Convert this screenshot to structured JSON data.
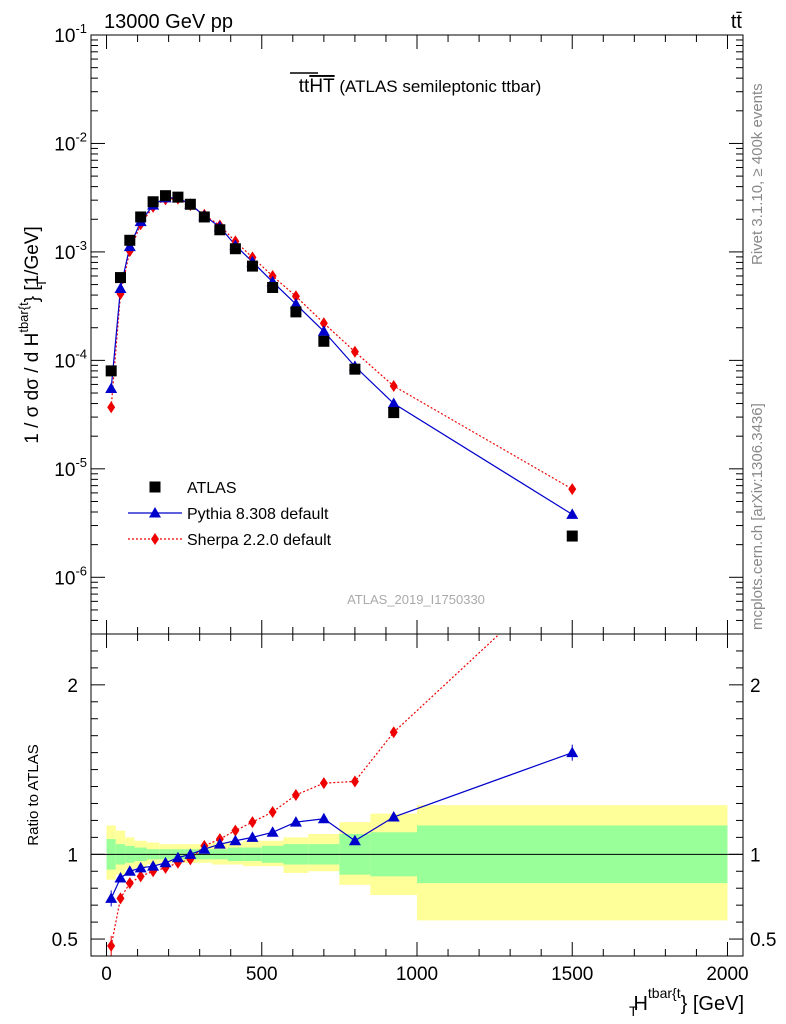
{
  "header": {
    "energy_label": "13000 GeV pp",
    "process_label": "tt̄"
  },
  "side_labels": {
    "rivet": "Rivet 3.1.10, ≥ 400k events",
    "mcplots": "mcplots.cern.ch [arXiv:1306.3436]"
  },
  "plot": {
    "title_main": "tt",
    "title_overline": "HT",
    "title_rest": " (ATLAS semileptonic ttbar)",
    "analysis_id": "ATLAS_2019_I1750330",
    "ylabel_main": "1 / σ dσ / d H",
    "ylabel_sub": "T",
    "ylabel_sup": "tbar{t",
    "ylabel_tail": "} [1/GeV]",
    "ratio_ylabel": "Ratio to ATLAS",
    "xlabel_main": "H",
    "xlabel_sub": "T",
    "xlabel_sup": "tbar{t",
    "xlabel_tail": "} [GeV]"
  },
  "colors": {
    "atlas": "#000000",
    "pythia": "#0000cc",
    "sherpa": "#ee0000",
    "band_inner": "#99ff99",
    "band_outer": "#ffff99"
  },
  "chart_data": {
    "type": "scatter",
    "x_scale": "linear",
    "y_scale": "log",
    "xlim": [
      -50,
      2050
    ],
    "ylim": [
      3e-07,
      0.1
    ],
    "ratio_ylim": [
      0.4,
      2.3
    ],
    "y_ticks": [
      "10^-6",
      "10^-5",
      "10^-4",
      "10^-3",
      "10^-2",
      "10^-1"
    ],
    "x_ticks": [
      "0",
      "500",
      "1000",
      "1500",
      "2000"
    ],
    "ratio_ticks": [
      "0.5",
      "1",
      "2"
    ],
    "legend_position": "lower-left",
    "series": [
      {
        "name": "ATLAS",
        "marker": "square",
        "x": [
          15,
          45,
          75,
          110,
          150,
          190,
          230,
          270,
          315,
          365,
          415,
          470,
          535,
          610,
          700,
          800,
          925,
          1500
        ],
        "values": [
          8e-05,
          0.00058,
          0.00128,
          0.0021,
          0.0029,
          0.0033,
          0.0032,
          0.00275,
          0.0021,
          0.0016,
          0.00107,
          0.00074,
          0.00047,
          0.00028,
          0.00015,
          8.3e-05,
          3.3e-05,
          2.4e-06
        ]
      },
      {
        "name": "Pythia 8.308 default",
        "marker": "triangle",
        "line": "solid",
        "x": [
          15,
          45,
          75,
          110,
          150,
          190,
          230,
          270,
          315,
          365,
          415,
          470,
          535,
          610,
          700,
          800,
          925,
          1500
        ],
        "values": [
          5.5e-05,
          0.00046,
          0.00112,
          0.0019,
          0.0027,
          0.00315,
          0.00315,
          0.00275,
          0.00215,
          0.0017,
          0.00115,
          0.00081,
          0.00053,
          0.00033,
          0.000185,
          8.8e-05,
          4e-05,
          3.8e-06
        ],
        "ratio": [
          0.74,
          0.86,
          0.9,
          0.92,
          0.93,
          0.95,
          0.98,
          1.0,
          1.03,
          1.06,
          1.08,
          1.1,
          1.13,
          1.19,
          1.21,
          1.08,
          1.22,
          1.6
        ]
      },
      {
        "name": "Sherpa 2.2.0 default",
        "marker": "diamond",
        "line": "dotted",
        "x": [
          15,
          45,
          75,
          110,
          150,
          190,
          230,
          270,
          315,
          365,
          415,
          470,
          535,
          610,
          700,
          800,
          925,
          1500
        ],
        "values": [
          3.7e-05,
          0.00041,
          0.00102,
          0.0018,
          0.0026,
          0.00305,
          0.0031,
          0.0027,
          0.0022,
          0.00175,
          0.00125,
          0.00089,
          0.0006,
          0.00039,
          0.00022,
          0.00012,
          5.8e-05,
          6.5e-06
        ],
        "ratio": [
          0.46,
          0.74,
          0.83,
          0.87,
          0.9,
          0.92,
          0.95,
          0.97,
          1.05,
          1.09,
          1.14,
          1.19,
          1.25,
          1.35,
          1.42,
          1.43,
          1.72,
          2.7
        ]
      }
    ],
    "ratio_bands": {
      "edges": [
        0,
        30,
        60,
        90,
        130,
        170,
        210,
        250,
        290,
        340,
        390,
        440,
        500,
        570,
        650,
        750,
        850,
        1000,
        2000
      ],
      "inner_lo": [
        0.91,
        0.94,
        0.95,
        0.96,
        0.97,
        0.97,
        0.97,
        0.97,
        0.97,
        0.97,
        0.96,
        0.96,
        0.95,
        0.94,
        0.94,
        0.88,
        0.87,
        0.83
      ],
      "inner_hi": [
        1.09,
        1.06,
        1.05,
        1.04,
        1.03,
        1.03,
        1.03,
        1.03,
        1.03,
        1.03,
        1.04,
        1.04,
        1.05,
        1.06,
        1.06,
        1.12,
        1.13,
        1.17
      ],
      "outer_lo": [
        0.85,
        0.88,
        0.91,
        0.92,
        0.94,
        0.95,
        0.95,
        0.95,
        0.95,
        0.94,
        0.94,
        0.93,
        0.93,
        0.89,
        0.9,
        0.82,
        0.76,
        0.61
      ],
      "outer_hi": [
        1.17,
        1.14,
        1.1,
        1.08,
        1.07,
        1.06,
        1.06,
        1.06,
        1.06,
        1.07,
        1.07,
        1.08,
        1.08,
        1.1,
        1.12,
        1.19,
        1.24,
        1.29
      ]
    }
  }
}
